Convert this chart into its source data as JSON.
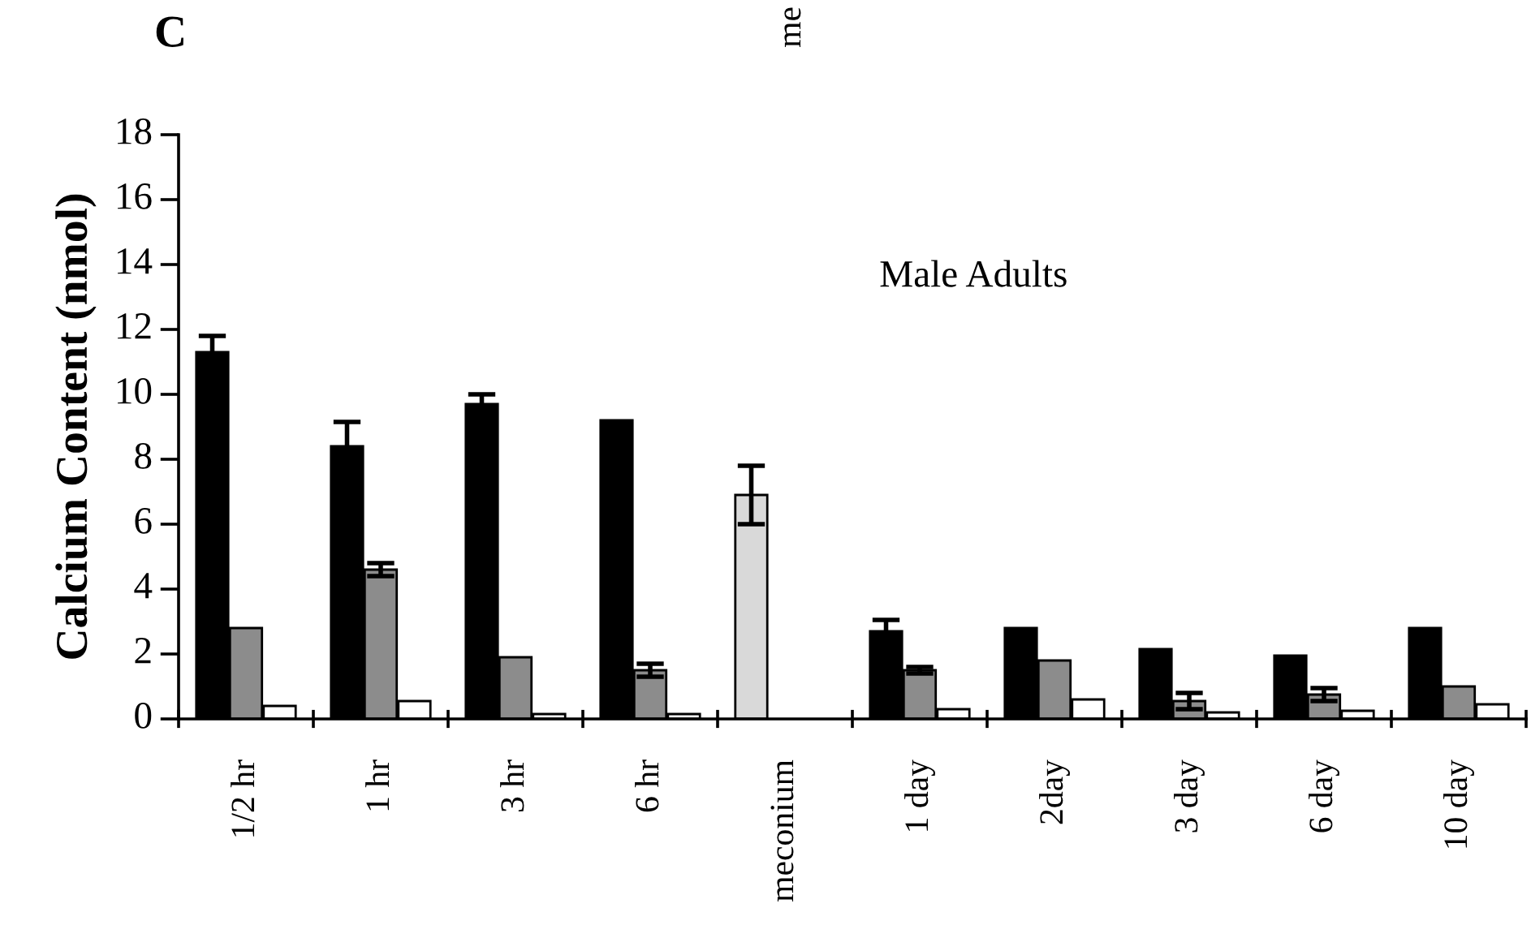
{
  "chart_data": {
    "type": "bar",
    "title": "C",
    "ylabel": "Calcium Content (nmol)",
    "annotations": [
      "Male Adults",
      "me"
    ],
    "categories": [
      "1/2 hr",
      "1 hr",
      "3 hr",
      "6 hr",
      "meconium",
      "1 day",
      "2day",
      "3 day",
      "6 day",
      "10 day"
    ],
    "series": [
      {
        "color": "#000000",
        "colors": [
          "#000000",
          "#000000",
          "#000000",
          "#000000",
          "#d9d9d9",
          "#000000",
          "#000000",
          "#000000",
          "#000000",
          "#000000"
        ],
        "values": [
          11.3,
          8.4,
          9.7,
          9.2,
          6.9,
          2.7,
          2.8,
          2.15,
          1.95,
          2.8
        ],
        "errors": [
          0.5,
          0.75,
          0.3,
          null,
          0.9,
          0.35,
          null,
          null,
          null,
          null
        ]
      },
      {
        "color": "#8c8c8c",
        "values": [
          2.8,
          4.6,
          1.9,
          1.5,
          null,
          1.5,
          1.8,
          0.55,
          0.75,
          1.0
        ],
        "errors": [
          null,
          0.2,
          null,
          0.2,
          null,
          0.1,
          null,
          0.25,
          0.2,
          null
        ]
      },
      {
        "color": "#ffffff",
        "values": [
          0.4,
          0.55,
          0.15,
          0.15,
          null,
          0.3,
          0.6,
          0.2,
          0.25,
          0.45
        ]
      }
    ],
    "ylim": [
      0,
      18
    ],
    "yticks": [
      0,
      2,
      4,
      6,
      8,
      10,
      12,
      14,
      16,
      18
    ],
    "grid": false,
    "legend": false
  }
}
